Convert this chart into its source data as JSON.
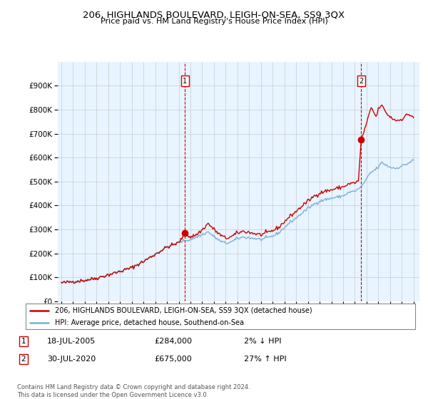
{
  "title": "206, HIGHLANDS BOULEVARD, LEIGH-ON-SEA, SS9 3QX",
  "subtitle": "Price paid vs. HM Land Registry's House Price Index (HPI)",
  "sale1_label": "18-JUL-2005",
  "sale1_price": 284000,
  "sale1_pct": "2% ↓ HPI",
  "sale1_x": 2005.54,
  "sale2_label": "30-JUL-2020",
  "sale2_price": 675000,
  "sale2_pct": "27% ↑ HPI",
  "sale2_x": 2020.54,
  "legend_line1": "206, HIGHLANDS BOULEVARD, LEIGH-ON-SEA, SS9 3QX (detached house)",
  "legend_line2": "HPI: Average price, detached house, Southend-on-Sea",
  "footer": "Contains HM Land Registry data © Crown copyright and database right 2024.\nThis data is licensed under the Open Government Licence v3.0.",
  "price_color": "#cc0000",
  "hpi_color": "#7ab0d4",
  "fill_color": "#ddeeff",
  "ylim": [
    0,
    1000000
  ],
  "yticks": [
    0,
    100000,
    200000,
    300000,
    400000,
    500000,
    600000,
    700000,
    800000,
    900000
  ],
  "ytick_labels": [
    "£0",
    "£100K",
    "£200K",
    "£300K",
    "£400K",
    "£500K",
    "£600K",
    "£700K",
    "£800K",
    "£900K"
  ],
  "background_color": "#ffffff",
  "plot_bg_color": "#e8f4ff",
  "grid_color": "#bbbbbb",
  "ann_box_color": "#cc0000"
}
